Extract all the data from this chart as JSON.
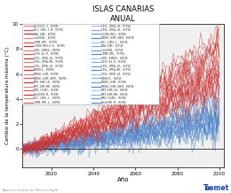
{
  "title": "ISLAS CANARIAS",
  "subtitle": "ANUAL",
  "xlabel": "Año",
  "ylabel": "Cambio de la temperatura máxima (°C)",
  "xlim": [
    2006,
    2102
  ],
  "ylim": [
    -1.5,
    10
  ],
  "yticks": [
    0,
    2,
    4,
    6,
    8,
    10
  ],
  "xticks": [
    2020,
    2040,
    2060,
    2080,
    2100
  ],
  "bg_color": "#f0f0f0",
  "n_red_series": 26,
  "n_blue_series": 26,
  "red_color": "#cc3333",
  "blue_color": "#5588cc",
  "start_year": 2006,
  "end_year": 2100,
  "footer_left": "Agencia Estatal de Meteorología",
  "footer_color": "#999999",
  "legend_left_labels": [
    "ACCESS1-3, RCP85",
    "BCC-CSM1-1-M, RCP85",
    "BNU-ESM, RCP85",
    "CanESM2, RCP85",
    "CNRM-CM5, RCP85",
    "CSIRO-MK3-6-0, RCP85",
    "GFDL-ESM2G, RCP85",
    "GISS-E2-R, RCP85",
    "IPSL-CM5A-LR, RCP85",
    "IPSL-CM5A-MR, RCP85",
    "IPSL-CM5B-LR, RCP85",
    "MIROC5, RCP85",
    "MIROC-ESM, RCP85",
    "MIROC-ESM-CHEM, RCP85",
    "MPI-ESM-LR, RCP85",
    "MPI-ESM-MR, RCP85",
    "MRI-CGCM3, RCP85",
    "NorESM1-M, RCP85",
    "BCC-CSM1-1, RCP85",
    "CNRM-CM5-2, RCP85"
  ],
  "legend_right_labels": [
    "IPSL-CM5B-LR, RCP45",
    "IPSL-CM5A-LR, RCP45",
    "CSIRO-MK3, RCP45",
    "MIROC-ESM-CHEM, RCP45",
    "BCC-CSM1-1, RCP45",
    "BNU-ESM, RCP45",
    "CanESM2, RCP45",
    "CNRM-CM5, RCP45",
    "GFDL-ESM2G, RCP45",
    "GISS-E2-R, RCP45",
    "IPSL-CM5A-LR, RCP45",
    "IPSL-CM5A-MR, RCP45",
    "IPSL-CM5B-LR, RCP45",
    "MIROC5, RCP45",
    "MIROC-ESM, RCP45",
    "MIROC-ESM-CHEM, RCP45",
    "MPI-ESM-LR, RCP45",
    "MPI-ESM-MR, RCP45",
    "MRI-CGCM3, RCP45",
    "NorESM1-M, RCP45"
  ]
}
